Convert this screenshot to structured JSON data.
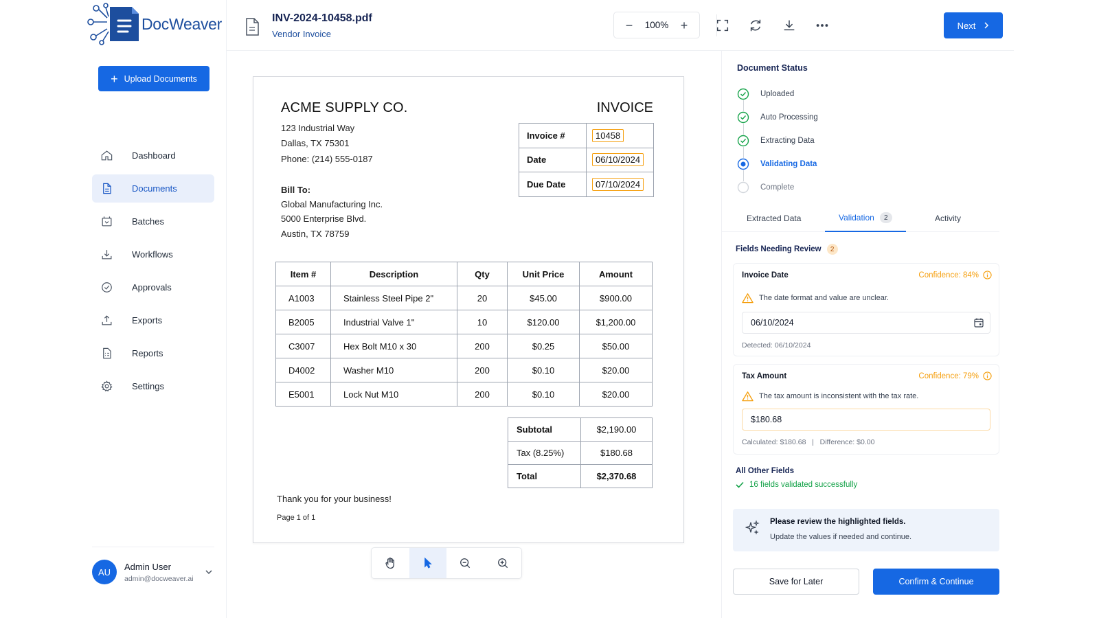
{
  "app": {
    "brand": "DocWeaver",
    "brand_color": "#1668e3"
  },
  "sidebar": {
    "upload_label": "Upload Documents",
    "items": [
      {
        "label": "Dashboard",
        "icon": "home-icon"
      },
      {
        "label": "Documents",
        "icon": "document-icon",
        "active": true
      },
      {
        "label": "Batches",
        "icon": "batches-icon"
      },
      {
        "label": "Workflows",
        "icon": "workflow-icon"
      },
      {
        "label": "Approvals",
        "icon": "check-circle-icon"
      },
      {
        "label": "Exports",
        "icon": "export-icon"
      },
      {
        "label": "Reports",
        "icon": "report-icon"
      },
      {
        "label": "Settings",
        "icon": "gear-icon"
      }
    ],
    "user": {
      "initials": "AU",
      "name": "Admin User",
      "email": "admin@docweaver.ai"
    }
  },
  "header": {
    "file_name": "INV-2024-10458.pdf",
    "file_type": "Vendor Invoice",
    "zoom": "100%",
    "zoom_out": "−",
    "zoom_in": "+",
    "next_label": "Next"
  },
  "invoice": {
    "company": "ACME SUPPLY CO.",
    "title": "INVOICE",
    "address": [
      "123 Industrial Way",
      "Dallas, TX 75301",
      "Phone: (214) 555-0187"
    ],
    "meta": [
      {
        "label": "Invoice #",
        "value": "10458"
      },
      {
        "label": "Date",
        "value": "06/10/2024"
      },
      {
        "label": "Due Date",
        "value": "07/10/2024"
      }
    ],
    "bill_to_label": "Bill To:",
    "bill_to": [
      "Global Manufacturing Inc.",
      "5000 Enterprise Blvd.",
      "Austin, TX 78759"
    ],
    "columns": [
      "Item #",
      "Description",
      "Qty",
      "Unit Price",
      "Amount"
    ],
    "rows": [
      [
        "A1003",
        "Stainless Steel Pipe 2\"",
        "20",
        "$45.00",
        "$900.00"
      ],
      [
        "B2005",
        "Industrial Valve 1\"",
        "10",
        "$120.00",
        "$1,200.00"
      ],
      [
        "C3007",
        "Hex Bolt M10 x 30",
        "200",
        "$0.25",
        "$50.00"
      ],
      [
        "D4002",
        "Washer M10",
        "200",
        "$0.10",
        "$20.00"
      ],
      [
        "E5001",
        "Lock Nut M10",
        "200",
        "$0.10",
        "$20.00"
      ]
    ],
    "totals": [
      {
        "label": "Subtotal",
        "value": "$2,190.00"
      },
      {
        "label": "Tax (8.25%)",
        "value": "$180.68"
      },
      {
        "label": "Total",
        "value": "$2,370.68"
      }
    ],
    "thanks": "Thank you for your business!",
    "page": "Page 1 of 1"
  },
  "status": {
    "title": "Document Status",
    "steps": [
      {
        "label": "Uploaded",
        "state": "done"
      },
      {
        "label": "Auto Processing",
        "state": "done"
      },
      {
        "label": "Extracting Data",
        "state": "done"
      },
      {
        "label": "Validating Data",
        "state": "current"
      },
      {
        "label": "Complete",
        "state": "pending"
      }
    ]
  },
  "tabs": [
    {
      "label": "Extracted Data"
    },
    {
      "label": "Validation",
      "count": "2",
      "active": true
    },
    {
      "label": "Activity"
    }
  ],
  "review": {
    "title": "Fields Needing Review",
    "count": "2",
    "fields": [
      {
        "name": "Invoice Date",
        "confidence": "Confidence: 84%",
        "warning": "The date format and value are unclear.",
        "value": "06/10/2024",
        "note": "Detected: 06/10/2024"
      },
      {
        "name": "Tax Amount",
        "confidence": "Confidence: 79%",
        "warning": "The tax amount is inconsistent with the tax rate.",
        "value": "$180.68",
        "note": "Calculated: $180.68   |   Difference: $0.00"
      }
    ],
    "other_title": "All Other Fields",
    "other_ok": "16 fields validated successfully",
    "hint_title": "Please review the highlighted fields.",
    "hint_text": "Update the values if needed and continue.",
    "save_label": "Save for Later",
    "confirm_label": "Confirm & Continue"
  }
}
